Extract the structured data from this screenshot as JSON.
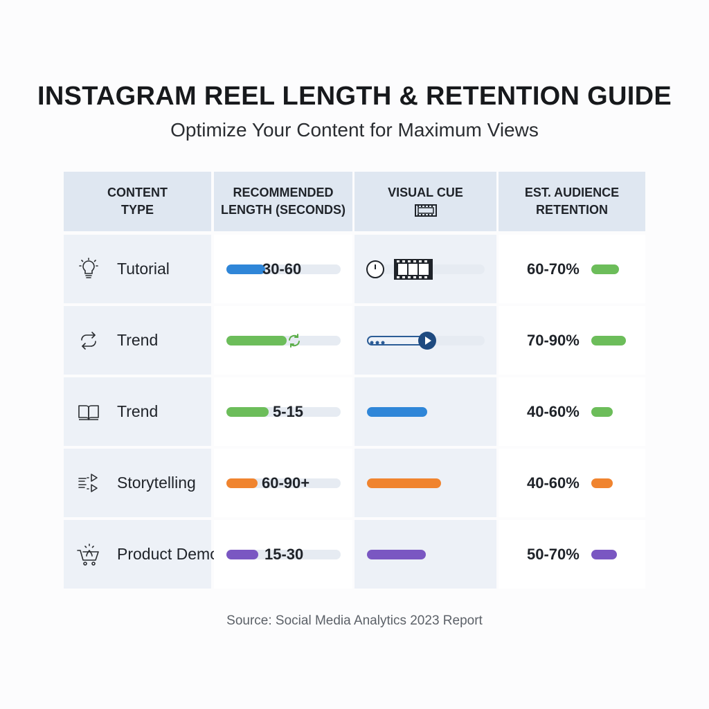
{
  "title": "INSTAGRAM REEL LENGTH & RETENTION GUIDE",
  "subtitle": "Optimize Your Content for Maximum Views",
  "headers": {
    "content_type": [
      "CONTENT",
      "TYPE"
    ],
    "recommended_length": [
      "RECOMMENDED",
      "LENGTH (SECONDS)"
    ],
    "visual_cue": [
      "VISUAL CUE"
    ],
    "retention": [
      "EST. AUDIENCE",
      "RETENTION"
    ]
  },
  "rows": [
    {
      "label": "Tutorial",
      "icon": "lightbulb-icon",
      "length": "30-60",
      "length_fill": 0.34,
      "length_color": "#2f86d8",
      "cue_fill": 0.0,
      "cue_color": "#2f86d8",
      "cue_icons": [
        "clock-icon",
        "film-strip-icon"
      ],
      "retention": "60-70%",
      "retention_fill": 0.65,
      "retention_color": "#6cbd5a"
    },
    {
      "label": "Trend",
      "icon": "repeat-icon",
      "length": "",
      "length_fill": 0.53,
      "length_color": "#6cbd5a",
      "cue_fill": 0.5,
      "cue_color": "#2b5c96",
      "cue_icons": [
        "progress-dots-icon",
        "play-icon"
      ],
      "retention": "70-90%",
      "retention_fill": 0.8,
      "retention_color": "#6cbd5a"
    },
    {
      "label": "Trend",
      "icon": "book-icon",
      "length": "5-15",
      "length_fill": 0.37,
      "length_color": "#6cbd5a",
      "cue_fill": 0.51,
      "cue_color": "#2f86d8",
      "cue_icons": [],
      "retention": "40-60%",
      "retention_fill": 0.5,
      "retention_color": "#6cbd5a"
    },
    {
      "label": "Storytelling",
      "icon": "storyboard-icon",
      "length": "60-90+",
      "length_fill": 0.27,
      "length_color": "#f0842f",
      "cue_fill": 0.63,
      "cue_color": "#f0842f",
      "cue_icons": [],
      "retention": "40-60%",
      "retention_fill": 0.5,
      "retention_color": "#f0842f"
    },
    {
      "label": "Product Demo",
      "icon": "shopping-cart-icon",
      "length": "15-30",
      "length_fill": 0.28,
      "length_color": "#7a57c2",
      "cue_fill": 0.5,
      "cue_color": "#7a57c2",
      "cue_icons": [],
      "retention": "50-70%",
      "retention_fill": 0.6,
      "retention_color": "#7a57c2"
    }
  ],
  "source": "Source: Social Media Analytics 2023 Report"
}
